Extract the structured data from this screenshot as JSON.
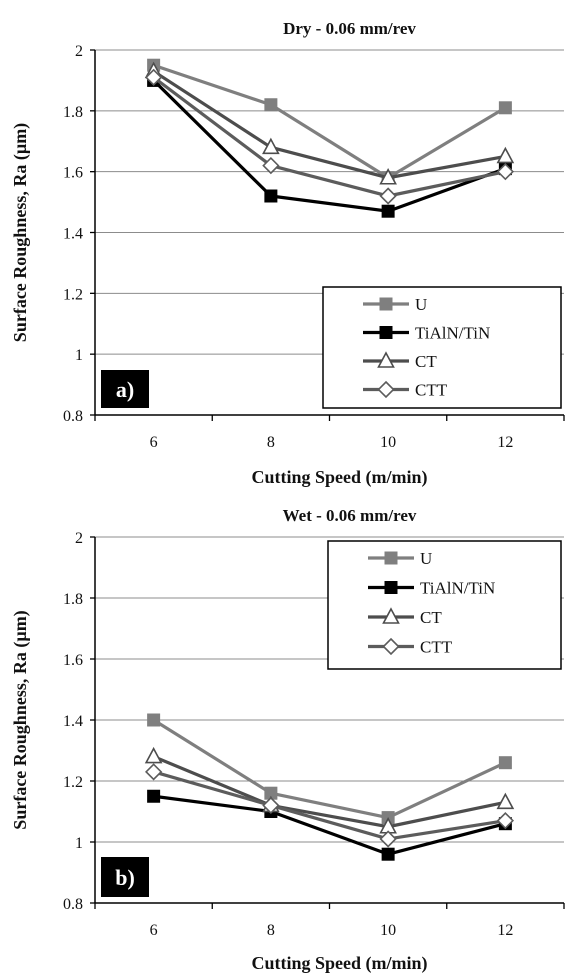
{
  "chart_data": [
    {
      "type": "line",
      "title": "Dry - 0.06 mm/rev",
      "xlabel": "Cutting Speed (m/min)",
      "ylabel": "Surface Roughness, Ra (µm)",
      "panel_label": "a)",
      "categories": [
        "6",
        "8",
        "10",
        "12"
      ],
      "ylim": [
        0.8,
        2
      ],
      "yticks": [
        "0.8",
        "1",
        "1.2",
        "1.4",
        "1.6",
        "1.8",
        "2"
      ],
      "grid": true,
      "legend_position": "bottom-right",
      "series": [
        {
          "name": "U",
          "values": [
            1.95,
            1.82,
            1.58,
            1.81
          ],
          "color": "#7f7f7f",
          "marker": "square-filled"
        },
        {
          "name": "TiAlN/TiN",
          "values": [
            1.9,
            1.52,
            1.47,
            1.61
          ],
          "color": "#000000",
          "marker": "square-filled"
        },
        {
          "name": "CT",
          "values": [
            1.93,
            1.68,
            1.58,
            1.65
          ],
          "color": "#4d4d4d",
          "marker": "triangle-open"
        },
        {
          "name": "CTT",
          "values": [
            1.91,
            1.62,
            1.52,
            1.6
          ],
          "color": "#5c5c5c",
          "marker": "diamond-open"
        }
      ]
    },
    {
      "type": "line",
      "title": "Wet - 0.06 mm/rev",
      "xlabel": "Cutting Speed (m/min)",
      "ylabel": "Surface Roughness, Ra (µm)",
      "panel_label": "b)",
      "categories": [
        "6",
        "8",
        "10",
        "12"
      ],
      "ylim": [
        0.8,
        2
      ],
      "yticks": [
        "0.8",
        "1",
        "1.2",
        "1.4",
        "1.6",
        "1.8",
        "2"
      ],
      "grid": true,
      "legend_position": "top-right",
      "series": [
        {
          "name": "U",
          "values": [
            1.4,
            1.16,
            1.08,
            1.26
          ],
          "color": "#7f7f7f",
          "marker": "square-filled"
        },
        {
          "name": "TiAlN/TiN",
          "values": [
            1.15,
            1.1,
            0.96,
            1.06
          ],
          "color": "#000000",
          "marker": "square-filled"
        },
        {
          "name": "CT",
          "values": [
            1.28,
            1.12,
            1.05,
            1.13
          ],
          "color": "#4d4d4d",
          "marker": "triangle-open"
        },
        {
          "name": "CTT",
          "values": [
            1.23,
            1.12,
            1.01,
            1.07
          ],
          "color": "#5c5c5c",
          "marker": "diamond-open"
        }
      ]
    }
  ]
}
